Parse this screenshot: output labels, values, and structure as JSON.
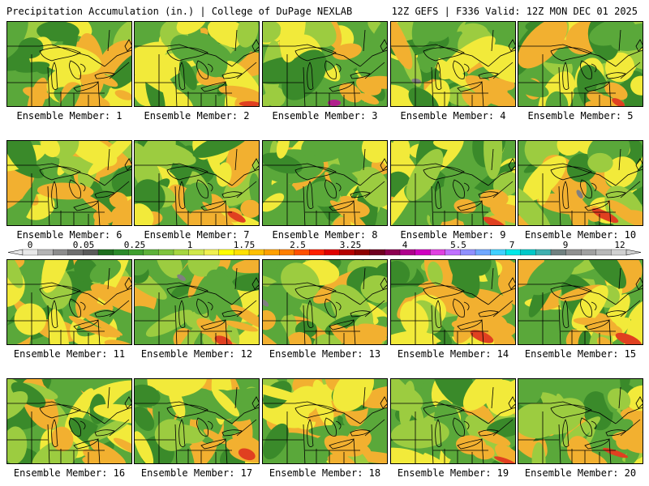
{
  "header": {
    "title": "Precipitation Accumulation (in.) | College of DuPage NEXLAB",
    "run_info": "12Z GEFS | F336 Valid: 12Z MON DEC 01 2025"
  },
  "colorbar": {
    "labels": [
      "0",
      "0.05",
      "0.25",
      "1",
      "1.75",
      "2.5",
      "3.25",
      "4",
      "5.5",
      "7",
      "9",
      "12"
    ],
    "colors": [
      "#e8e8e8",
      "#b4b4b4",
      "#8c8c8c",
      "#6e6e6e",
      "#5a5a5a",
      "#1e6e1e",
      "#2a8a2a",
      "#3f9f30",
      "#5db13a",
      "#7fc43e",
      "#a6d640",
      "#d0e84a",
      "#f0f050",
      "#ffff00",
      "#ffe000",
      "#ffc000",
      "#ffa000",
      "#ff7f00",
      "#ff5000",
      "#ff2000",
      "#e00000",
      "#b40000",
      "#8c0000",
      "#6e0020",
      "#8c0050",
      "#b0008c",
      "#d000c0",
      "#e040e0",
      "#c070ff",
      "#9090ff",
      "#70a8ff",
      "#40d0ff",
      "#00e8e8",
      "#00c8c8",
      "#40b0b0",
      "#708080",
      "#909090",
      "#a0a0a0",
      "#b8b8b8",
      "#d0d0d0"
    ]
  },
  "panels": [
    {
      "label": "Ensemble Member: 1"
    },
    {
      "label": "Ensemble Member: 2"
    },
    {
      "label": "Ensemble Member: 3"
    },
    {
      "label": "Ensemble Member: 4"
    },
    {
      "label": "Ensemble Member: 5"
    },
    {
      "label": "Ensemble Member: 6"
    },
    {
      "label": "Ensemble Member: 7"
    },
    {
      "label": "Ensemble Member: 8"
    },
    {
      "label": "Ensemble Member: 9"
    },
    {
      "label": "Ensemble Member: 10"
    },
    {
      "label": "Ensemble Member: 11"
    },
    {
      "label": "Ensemble Member: 12"
    },
    {
      "label": "Ensemble Member: 13"
    },
    {
      "label": "Ensemble Member: 14"
    },
    {
      "label": "Ensemble Member: 15"
    },
    {
      "label": "Ensemble Member: 16"
    },
    {
      "label": "Ensemble Member: 17"
    },
    {
      "label": "Ensemble Member: 18"
    },
    {
      "label": "Ensemble Member: 19"
    },
    {
      "label": "Ensemble Member: 20"
    }
  ],
  "field_colors": {
    "dark_green": "#3a8a2a",
    "green": "#5aa83a",
    "light_green": "#9ccc40",
    "yellow": "#f2ea3a",
    "orange": "#f2b030",
    "red": "#e04020",
    "magenta": "#b0208c",
    "gray": "#808080",
    "border": "#000000"
  }
}
